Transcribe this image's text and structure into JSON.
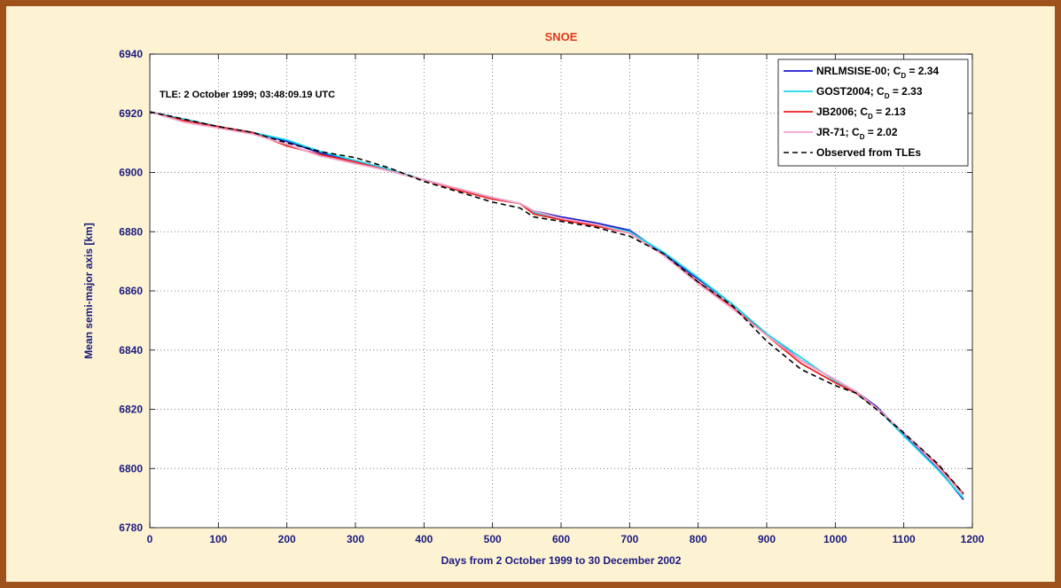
{
  "chart_data": {
    "type": "line",
    "title": "SNOE",
    "title_color": "#e03a1e",
    "xlabel": "Days from 2 October 1999 to 30 December 2002",
    "ylabel": "Mean semi-major axis [km]",
    "xlim": [
      0,
      1200
    ],
    "ylim": [
      6780,
      6940
    ],
    "xticks": [
      0,
      100,
      200,
      300,
      400,
      500,
      600,
      700,
      800,
      900,
      1000,
      1100,
      1200
    ],
    "yticks": [
      6780,
      6800,
      6820,
      6840,
      6860,
      6880,
      6900,
      6920,
      6940
    ],
    "grid": true,
    "legend_position": "top-right",
    "annotation": "TLE: 2 October 1999; 03:48:09.19 UTC",
    "series": [
      {
        "name": "NRLMSISE-00; C_D = 2.34",
        "legend_main": "NRLMSISE-00; C",
        "legend_sub": "D",
        "legend_tail": " = 2.34",
        "color": "#1a1acc",
        "dash": "solid",
        "x": [
          0,
          50,
          100,
          150,
          200,
          250,
          300,
          350,
          400,
          450,
          500,
          540,
          560,
          600,
          650,
          700,
          750,
          800,
          850,
          900,
          950,
          1000,
          1030,
          1060,
          1100,
          1150,
          1187
        ],
        "y": [
          6920.5,
          6918.0,
          6915.5,
          6913.5,
          6910.5,
          6906.5,
          6904.0,
          6901.0,
          6897.5,
          6894.5,
          6891.5,
          6889.5,
          6887.0,
          6885.0,
          6883.0,
          6880.5,
          6872.5,
          6864.0,
          6855.5,
          6845.5,
          6836.5,
          6830.0,
          6826.0,
          6821.0,
          6811.5,
          6800.0,
          6789.5
        ]
      },
      {
        "name": "GOST2004; C_D = 2.33",
        "legend_main": "GOST2004; C",
        "legend_sub": "D",
        "legend_tail": " = 2.33",
        "color": "#17d8e8",
        "dash": "solid",
        "x": [
          0,
          50,
          100,
          150,
          200,
          250,
          300,
          350,
          400,
          450,
          500,
          540,
          560,
          600,
          650,
          700,
          750,
          800,
          850,
          900,
          950,
          1000,
          1030,
          1060,
          1100,
          1150,
          1187
        ],
        "y": [
          6920.5,
          6918.0,
          6915.5,
          6913.5,
          6911.0,
          6907.0,
          6904.0,
          6901.0,
          6897.5,
          6894.5,
          6891.5,
          6889.5,
          6886.5,
          6884.5,
          6882.5,
          6880.0,
          6873.0,
          6864.5,
          6855.5,
          6845.5,
          6837.5,
          6829.5,
          6826.0,
          6820.5,
          6811.0,
          6799.5,
          6790.0
        ]
      },
      {
        "name": "JB2006; C_D = 2.13",
        "legend_main": "JB2006; C",
        "legend_sub": "D",
        "legend_tail": " = 2.13",
        "color": "#ee1f1f",
        "dash": "solid",
        "x": [
          0,
          50,
          100,
          150,
          200,
          250,
          300,
          350,
          400,
          450,
          500,
          540,
          560,
          600,
          650,
          700,
          750,
          800,
          850,
          900,
          950,
          1000,
          1030,
          1060,
          1100,
          1150,
          1187
        ],
        "y": [
          6920.5,
          6917.5,
          6915.5,
          6913.5,
          6909.0,
          6906.0,
          6903.5,
          6900.5,
          6897.5,
          6894.0,
          6891.0,
          6889.5,
          6886.0,
          6884.0,
          6882.0,
          6879.5,
          6872.0,
          6863.0,
          6854.5,
          6845.0,
          6835.5,
          6829.0,
          6825.5,
          6820.5,
          6812.0,
          6801.0,
          6791.5
        ]
      },
      {
        "name": "JR-71; C_D = 2.02",
        "legend_main": "JR-71; C",
        "legend_sub": "D",
        "legend_tail": " = 2.02",
        "color": "#f4a0c8",
        "dash": "solid",
        "x": [
          0,
          50,
          100,
          150,
          200,
          250,
          300,
          350,
          400,
          450,
          500,
          540,
          560,
          600,
          650,
          700,
          750,
          800,
          850,
          900,
          950,
          1000,
          1030,
          1060,
          1100,
          1150,
          1187
        ],
        "y": [
          6920.5,
          6917.0,
          6915.0,
          6913.0,
          6909.5,
          6905.5,
          6903.0,
          6900.5,
          6897.5,
          6894.5,
          6891.5,
          6889.5,
          6887.0,
          6884.5,
          6882.5,
          6879.5,
          6872.0,
          6862.5,
          6854.0,
          6845.0,
          6836.5,
          6830.0,
          6826.0,
          6820.5,
          6812.0,
          6800.5,
          6791.0
        ]
      },
      {
        "name": "Observed from TLEs",
        "legend_main": "Observed from TLEs",
        "legend_sub": "",
        "legend_tail": "",
        "color": "#000000",
        "dash": "dashed",
        "x": [
          0,
          50,
          100,
          150,
          200,
          250,
          300,
          350,
          400,
          450,
          500,
          540,
          560,
          600,
          650,
          700,
          750,
          800,
          850,
          900,
          950,
          1000,
          1030,
          1060,
          1100,
          1150,
          1187
        ],
        "y": [
          6920.5,
          6918.0,
          6915.5,
          6913.5,
          6910.0,
          6907.0,
          6905.0,
          6901.5,
          6897.0,
          6893.5,
          6890.0,
          6888.0,
          6885.0,
          6883.5,
          6881.5,
          6878.5,
          6872.5,
          6863.0,
          6855.0,
          6843.0,
          6833.5,
          6828.0,
          6825.5,
          6820.0,
          6812.0,
          6801.5,
          6791.5
        ]
      }
    ]
  }
}
